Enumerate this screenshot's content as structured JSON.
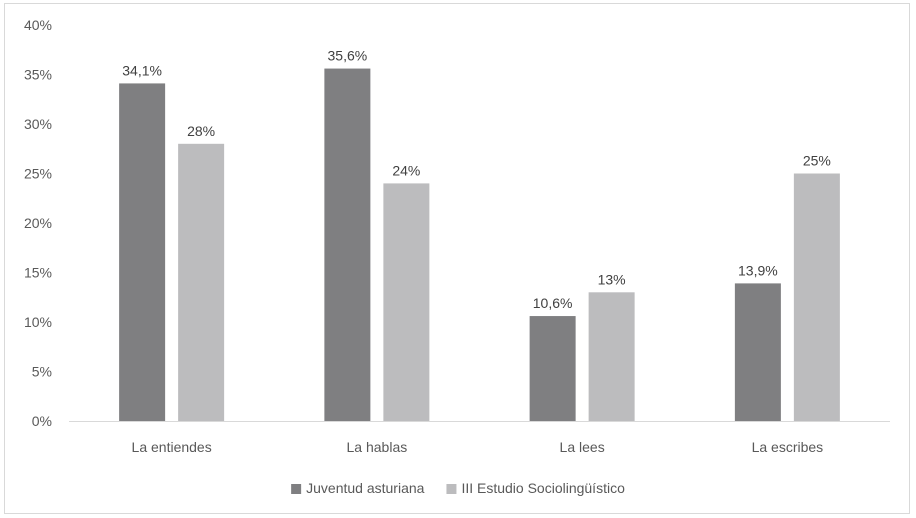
{
  "chart_data": {
    "type": "bar",
    "categories": [
      "La entiendes",
      "La hablas",
      "La lees",
      "La escribes"
    ],
    "series": [
      {
        "name": "Juventud asturiana",
        "values": [
          34.1,
          35.6,
          10.6,
          13.9
        ],
        "labels": [
          "34,1%",
          "35,6%",
          "10,6%",
          "13,9%"
        ],
        "color": "#7f7f81"
      },
      {
        "name": "III Estudio Sociolingüístico",
        "values": [
          28,
          24,
          13,
          25
        ],
        "labels": [
          "28%",
          "24%",
          "13%",
          "25%"
        ],
        "color": "#bcbcbe"
      }
    ],
    "y_ticks": [
      "0%",
      "5%",
      "10%",
      "15%",
      "20%",
      "25%",
      "30%",
      "35%",
      "40%"
    ],
    "ylim": [
      0,
      40
    ],
    "y_step": 5,
    "grid": false,
    "legend_position": "bottom"
  }
}
